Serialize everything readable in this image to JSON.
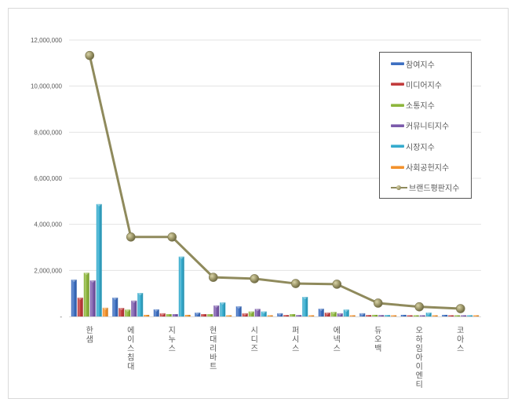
{
  "chart_data": {
    "type": "bar",
    "title": "",
    "xlabel": "",
    "ylabel": "",
    "ylim": [
      0,
      12000000
    ],
    "yticks": [
      0,
      2000000,
      4000000,
      6000000,
      8000000,
      10000000,
      12000000
    ],
    "ytick_labels": [
      "-",
      "2,000,000",
      "4,000,000",
      "6,000,000",
      "8,000,000",
      "10,000,000",
      "12,000,000"
    ],
    "grid": true,
    "legend_position": "upper-right inside",
    "categories": [
      "한샘",
      "에이스침대",
      "지누스",
      "현대리바트",
      "시디즈",
      "퍼시스",
      "에넥스",
      "듀오백",
      "오하임아이엔티",
      "코아스"
    ],
    "series": [
      {
        "name": "참여지수",
        "type": "bar",
        "color": "#3d6fc1",
        "values": [
          1600000,
          820000,
          310000,
          170000,
          440000,
          140000,
          340000,
          140000,
          70000,
          70000
        ]
      },
      {
        "name": "미디어지수",
        "type": "bar",
        "color": "#c23b3c",
        "values": [
          820000,
          370000,
          140000,
          100000,
          140000,
          60000,
          170000,
          60000,
          20000,
          30000
        ]
      },
      {
        "name": "소통지수",
        "type": "bar",
        "color": "#8db63c",
        "values": [
          1900000,
          300000,
          100000,
          100000,
          220000,
          100000,
          200000,
          70000,
          20000,
          50000
        ]
      },
      {
        "name": "커뮤니티지수",
        "type": "bar",
        "color": "#7b5aab",
        "values": [
          1570000,
          690000,
          100000,
          480000,
          330000,
          60000,
          140000,
          60000,
          20000,
          50000
        ]
      },
      {
        "name": "시장지수",
        "type": "bar",
        "color": "#35abcd",
        "values": [
          4880000,
          1020000,
          2600000,
          610000,
          220000,
          850000,
          300000,
          60000,
          170000,
          50000
        ]
      },
      {
        "name": "사회공헌지수",
        "type": "bar",
        "color": "#f3922c",
        "values": [
          380000,
          70000,
          70000,
          50000,
          50000,
          50000,
          40000,
          20000,
          10000,
          10000
        ]
      },
      {
        "name": "브랜드평판지수",
        "type": "line",
        "color": "#8f8a5c",
        "values": [
          11330000,
          3450000,
          3450000,
          1700000,
          1640000,
          1430000,
          1400000,
          580000,
          420000,
          340000
        ]
      }
    ]
  },
  "legend": {
    "items": [
      {
        "label": "참여지수",
        "color": "#3d6fc1",
        "kind": "bar"
      },
      {
        "label": "미디어지수",
        "color": "#c23b3c",
        "kind": "bar"
      },
      {
        "label": "소통지수",
        "color": "#8db63c",
        "kind": "bar"
      },
      {
        "label": "커뮤니티지수",
        "color": "#7b5aab",
        "kind": "bar"
      },
      {
        "label": "시장지수",
        "color": "#35abcd",
        "kind": "bar"
      },
      {
        "label": "사회공헌지수",
        "color": "#f3922c",
        "kind": "bar"
      },
      {
        "label": "브랜드평판지수",
        "color": "#8f8a5c",
        "kind": "line"
      }
    ]
  }
}
